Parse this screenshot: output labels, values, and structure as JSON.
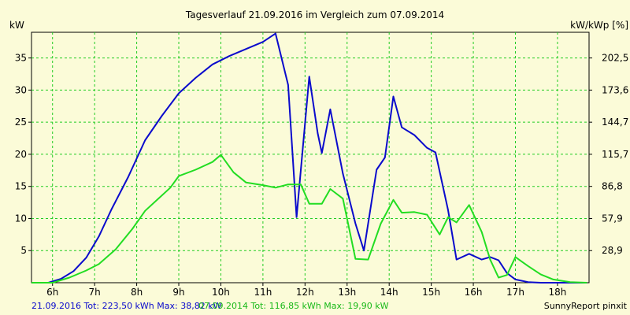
{
  "chart_data": {
    "type": "line",
    "title": "Tagesverlauf 21.09.2016 im Vergleich zum 07.09.2014",
    "ylabel_left": "kW",
    "ylabel_right": "kW/kWp [%]",
    "x_ticks": [
      "6h",
      "7h",
      "8h",
      "9h",
      "10h",
      "11h",
      "12h",
      "13h",
      "14h",
      "15h",
      "16h",
      "17h",
      "18h"
    ],
    "x_tick_values": [
      6,
      7,
      8,
      9,
      10,
      11,
      12,
      13,
      14,
      15,
      16,
      17,
      18
    ],
    "y_ticks_left": [
      "5",
      "10",
      "15",
      "20",
      "25",
      "30",
      "35"
    ],
    "y_tick_values_left": [
      5,
      10,
      15,
      20,
      25,
      30,
      35
    ],
    "y_ticks_right": [
      "28,9",
      "57,9",
      "86,8",
      "115,7",
      "144,7",
      "173,6",
      "202,5"
    ],
    "y_tick_values_right": [
      28.9,
      57.9,
      86.8,
      115.7,
      144.7,
      173.6,
      202.5
    ],
    "xlim": [
      5.5,
      18.75
    ],
    "ylim": [
      0,
      39
    ],
    "grid": true,
    "series": [
      {
        "color": "#0a0acc",
        "x": [
          5.5,
          5.9,
          6.2,
          6.5,
          6.8,
          7.1,
          7.4,
          7.8,
          8.2,
          8.6,
          9.0,
          9.4,
          9.8,
          10.2,
          10.6,
          11.0,
          11.3,
          11.6,
          11.8,
          12.1,
          12.3,
          12.4,
          12.6,
          12.9,
          13.2,
          13.4,
          13.7,
          13.9,
          14.1,
          14.3,
          14.6,
          14.9,
          15.1,
          15.4,
          15.6,
          15.9,
          16.2,
          16.4,
          16.6,
          16.8,
          17.0,
          17.3,
          17.6,
          17.9,
          18.3,
          18.7
        ],
        "y": [
          0,
          0,
          0.6,
          1.8,
          3.9,
          7.2,
          11.4,
          16.5,
          22.2,
          26.0,
          29.5,
          31.9,
          34.0,
          35.3,
          36.4,
          37.5,
          38.8,
          30.8,
          10.2,
          32.1,
          23.3,
          20.2,
          27.0,
          17.0,
          9.2,
          5.0,
          17.6,
          19.5,
          29.0,
          24.2,
          23.0,
          21.0,
          20.3,
          11.3,
          3.6,
          4.5,
          3.6,
          4.0,
          3.5,
          1.5,
          0.5,
          0.1,
          0,
          0,
          0,
          0
        ]
      },
      {
        "color": "#22dd22",
        "x": [
          5.5,
          6.0,
          6.4,
          6.8,
          7.1,
          7.5,
          7.9,
          8.2,
          8.5,
          8.8,
          9.0,
          9.4,
          9.8,
          10.0,
          10.3,
          10.6,
          11.0,
          11.3,
          11.6,
          11.9,
          12.1,
          12.4,
          12.6,
          12.9,
          13.2,
          13.5,
          13.8,
          14.1,
          14.3,
          14.6,
          14.9,
          15.2,
          15.4,
          15.6,
          15.9,
          16.2,
          16.4,
          16.6,
          16.8,
          17.0,
          17.3,
          17.6,
          17.9,
          18.3,
          18.7
        ],
        "y": [
          0,
          0,
          0.8,
          1.9,
          2.9,
          5.2,
          8.4,
          11.2,
          13.0,
          14.8,
          16.6,
          17.6,
          18.8,
          19.9,
          17.2,
          15.6,
          15.2,
          14.8,
          15.3,
          15.3,
          12.3,
          12.3,
          14.6,
          13.1,
          3.7,
          3.6,
          9.2,
          12.9,
          10.9,
          11.0,
          10.6,
          7.5,
          10.2,
          9.4,
          12.1,
          7.9,
          3.6,
          0.8,
          1.2,
          4.0,
          2.6,
          1.3,
          0.5,
          0.1,
          0
        ]
      }
    ],
    "footer_left_1": "21.09.2016 Tot: 223,50 kWh Max: 38,82 kW",
    "footer_left_2": "07.09.2014 Tot: 116,85 kWh Max: 19,90 kW",
    "footer_right": "SunnyReport pinxit"
  }
}
